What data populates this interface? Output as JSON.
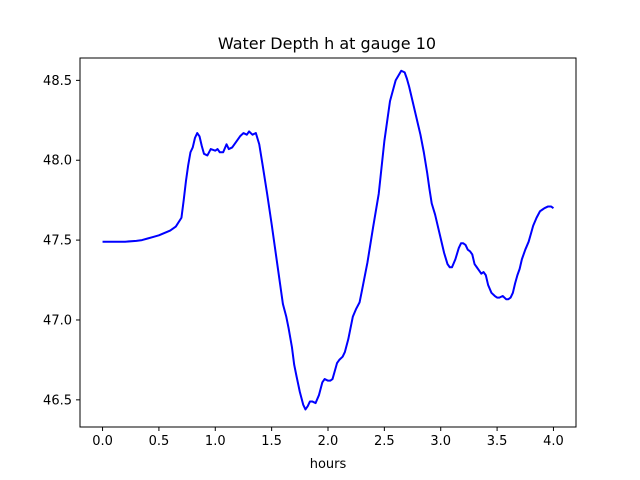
{
  "chart_data": {
    "type": "line",
    "title": "Water Depth h at gauge 10",
    "xlabel": "hours",
    "ylabel": "",
    "xlim": [
      -0.2,
      4.2
    ],
    "ylim": [
      46.33,
      48.64
    ],
    "xticks": [
      0.0,
      0.5,
      1.0,
      1.5,
      2.0,
      2.5,
      3.0,
      3.5,
      4.0
    ],
    "xtick_labels": [
      "0.0",
      "0.5",
      "1.0",
      "1.5",
      "2.0",
      "2.5",
      "3.0",
      "3.5",
      "4.0"
    ],
    "yticks": [
      46.5,
      47.0,
      47.5,
      48.0,
      48.5
    ],
    "ytick_labels": [
      "46.5",
      "47.0",
      "47.5",
      "48.0",
      "48.5"
    ],
    "grid": false,
    "series": [
      {
        "color": "#0000ff",
        "x": [
          0.0,
          0.1,
          0.2,
          0.3,
          0.35,
          0.4,
          0.45,
          0.5,
          0.55,
          0.6,
          0.65,
          0.7,
          0.72,
          0.74,
          0.76,
          0.78,
          0.8,
          0.82,
          0.84,
          0.86,
          0.88,
          0.9,
          0.93,
          0.96,
          1.0,
          1.02,
          1.04,
          1.07,
          1.1,
          1.12,
          1.15,
          1.18,
          1.22,
          1.25,
          1.28,
          1.3,
          1.33,
          1.36,
          1.39,
          1.42,
          1.46,
          1.5,
          1.55,
          1.6,
          1.63,
          1.65,
          1.68,
          1.7,
          1.72,
          1.75,
          1.78,
          1.8,
          1.82,
          1.84,
          1.86,
          1.89,
          1.92,
          1.95,
          1.97,
          2.0,
          2.02,
          2.04,
          2.06,
          2.08,
          2.1,
          2.13,
          2.15,
          2.18,
          2.2,
          2.22,
          2.25,
          2.28,
          2.3,
          2.35,
          2.4,
          2.45,
          2.5,
          2.55,
          2.6,
          2.65,
          2.68,
          2.7,
          2.72,
          2.75,
          2.78,
          2.8,
          2.82,
          2.85,
          2.88,
          2.9,
          2.92,
          2.95,
          2.98,
          3.0,
          3.03,
          3.06,
          3.08,
          3.1,
          3.13,
          3.16,
          3.18,
          3.2,
          3.22,
          3.24,
          3.26,
          3.28,
          3.3,
          3.32,
          3.34,
          3.36,
          3.38,
          3.4,
          3.42,
          3.45,
          3.48,
          3.5,
          3.52,
          3.55,
          3.58,
          3.6,
          3.62,
          3.64,
          3.66,
          3.68,
          3.7,
          3.72,
          3.75,
          3.78,
          3.8,
          3.82,
          3.85,
          3.88,
          3.9,
          3.92,
          3.95,
          3.98,
          4.0
        ],
        "y": [
          47.49,
          47.49,
          47.49,
          47.495,
          47.5,
          47.51,
          47.52,
          47.53,
          47.545,
          47.56,
          47.585,
          47.64,
          47.75,
          47.87,
          47.97,
          48.05,
          48.08,
          48.14,
          48.17,
          48.15,
          48.09,
          48.04,
          48.03,
          48.07,
          48.06,
          48.07,
          48.05,
          48.05,
          48.1,
          48.07,
          48.08,
          48.11,
          48.15,
          48.17,
          48.16,
          48.18,
          48.16,
          48.17,
          48.1,
          47.97,
          47.79,
          47.6,
          47.35,
          47.1,
          47.02,
          46.95,
          46.83,
          46.72,
          46.65,
          46.55,
          46.47,
          46.44,
          46.46,
          46.49,
          46.49,
          46.48,
          46.53,
          46.61,
          46.63,
          46.62,
          46.62,
          46.63,
          46.68,
          46.73,
          46.75,
          46.77,
          46.8,
          46.88,
          46.95,
          47.02,
          47.07,
          47.11,
          47.18,
          47.36,
          47.58,
          47.79,
          48.12,
          48.37,
          48.5,
          48.56,
          48.55,
          48.51,
          48.46,
          48.37,
          48.28,
          48.22,
          48.16,
          48.05,
          47.92,
          47.82,
          47.73,
          47.66,
          47.57,
          47.51,
          47.42,
          47.35,
          47.33,
          47.33,
          47.38,
          47.45,
          47.48,
          47.48,
          47.47,
          47.44,
          47.43,
          47.41,
          47.35,
          47.33,
          47.31,
          47.29,
          47.3,
          47.28,
          47.22,
          47.17,
          47.15,
          47.14,
          47.14,
          47.15,
          47.13,
          47.13,
          47.14,
          47.17,
          47.23,
          47.28,
          47.32,
          47.38,
          47.44,
          47.49,
          47.54,
          47.59,
          47.64,
          47.68,
          47.69,
          47.7,
          47.71,
          47.71,
          47.7
        ]
      }
    ]
  }
}
